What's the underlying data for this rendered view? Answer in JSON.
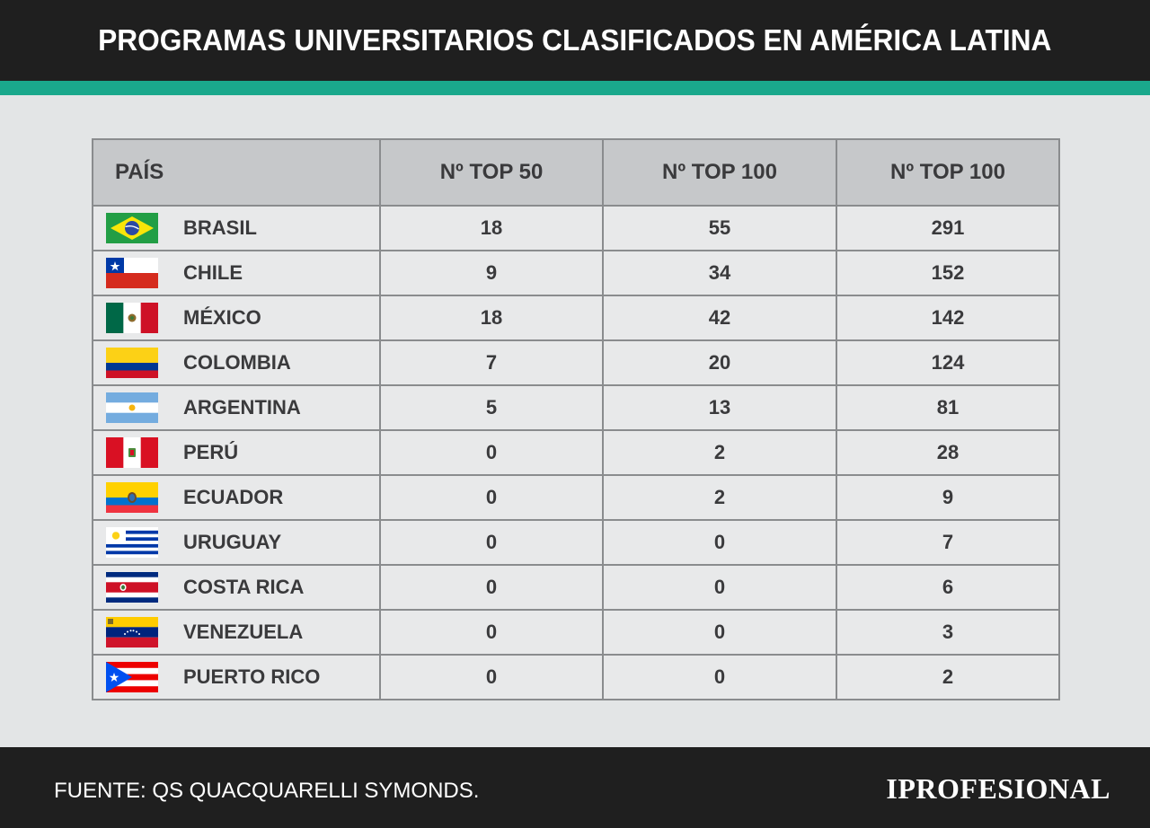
{
  "header": {
    "title": "PROGRAMAS UNIVERSITARIOS CLASIFICADOS EN AMÉRICA LATINA"
  },
  "colors": {
    "header_bg": "#1f1f1f",
    "accent": "#1aa88c",
    "table_header_bg": "#c6c8ca",
    "row_bg": "#e8e9ea"
  },
  "table": {
    "headers": [
      "PAÍS",
      "Nº TOP 50",
      "Nº TOP 100",
      "Nº TOP 100"
    ],
    "rows": [
      {
        "flag": "brazil-flag-icon",
        "country": "BRASIL",
        "top50": "18",
        "top100a": "55",
        "top100b": "291"
      },
      {
        "flag": "chile-flag-icon",
        "country": "CHILE",
        "top50": "9",
        "top100a": "34",
        "top100b": "152"
      },
      {
        "flag": "mexico-flag-icon",
        "country": "MÉXICO",
        "top50": "18",
        "top100a": "42",
        "top100b": "142"
      },
      {
        "flag": "colombia-flag-icon",
        "country": "COLOMBIA",
        "top50": "7",
        "top100a": "20",
        "top100b": "124"
      },
      {
        "flag": "argentina-flag-icon",
        "country": "ARGENTINA",
        "top50": "5",
        "top100a": "13",
        "top100b": "81"
      },
      {
        "flag": "peru-flag-icon",
        "country": "PERÚ",
        "top50": "0",
        "top100a": "2",
        "top100b": "28"
      },
      {
        "flag": "ecuador-flag-icon",
        "country": "ECUADOR",
        "top50": "0",
        "top100a": "2",
        "top100b": "9"
      },
      {
        "flag": "uruguay-flag-icon",
        "country": "URUGUAY",
        "top50": "0",
        "top100a": "0",
        "top100b": "7"
      },
      {
        "flag": "costa-rica-flag-icon",
        "country": "COSTA RICA",
        "top50": "0",
        "top100a": "0",
        "top100b": "6"
      },
      {
        "flag": "venezuela-flag-icon",
        "country": "VENEZUELA",
        "top50": "0",
        "top100a": "0",
        "top100b": "3"
      },
      {
        "flag": "puerto-rico-flag-icon",
        "country": "PUERTO RICO",
        "top50": "0",
        "top100a": "0",
        "top100b": "2"
      }
    ]
  },
  "footer": {
    "source": "FUENTE: QS QUACQUARELLI SYMONDS.",
    "logo": "IPROFESIONAL"
  }
}
